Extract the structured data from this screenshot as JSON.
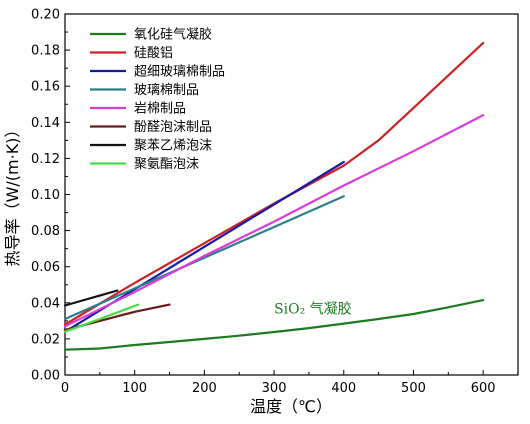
{
  "chart_data": {
    "type": "line",
    "xlabel": "温度（℃）",
    "ylabel": "热导率（W/(m·K)）",
    "xlim": [
      0,
      650
    ],
    "ylim": [
      0,
      0.2
    ],
    "xticks": [
      0,
      100,
      200,
      300,
      400,
      500,
      600
    ],
    "yticks": [
      0.0,
      0.02,
      0.04,
      0.06,
      0.08,
      0.1,
      0.12,
      0.14,
      0.16,
      0.18,
      0.2
    ],
    "grid": false,
    "legend_position": "top-left",
    "annotation": {
      "text": "SiO₂ 气凝胶",
      "x": 300,
      "y": 0.034,
      "color": "#1f7a1f"
    },
    "series": [
      {
        "name": "氧化硅气凝胶",
        "color": "#1f7a1f",
        "x": [
          0,
          50,
          100,
          150,
          200,
          250,
          300,
          350,
          400,
          450,
          500,
          550,
          600
        ],
        "y": [
          0.014,
          0.0147,
          0.0166,
          0.0183,
          0.02,
          0.0218,
          0.0238,
          0.026,
          0.0285,
          0.031,
          0.0338,
          0.0375,
          0.0415
        ]
      },
      {
        "name": "硅酸铝",
        "color": "#cc2222",
        "x": [
          0,
          100,
          200,
          300,
          400,
          450,
          500,
          550,
          600
        ],
        "y": [
          0.028,
          0.051,
          0.073,
          0.095,
          0.116,
          0.13,
          0.148,
          0.166,
          0.184
        ]
      },
      {
        "name": "超细玻璃棉制品",
        "color": "#1a1aa8",
        "x": [
          0,
          100,
          200,
          300,
          400
        ],
        "y": [
          0.024,
          0.0475,
          0.071,
          0.0945,
          0.118
        ]
      },
      {
        "name": "玻璃棉制品",
        "color": "#2a7f8a",
        "x": [
          0,
          100,
          200,
          300,
          400
        ],
        "y": [
          0.031,
          0.048,
          0.065,
          0.082,
          0.099
        ]
      },
      {
        "name": "岩棉制品",
        "color": "#d63fd6",
        "x": [
          0,
          100,
          200,
          300,
          400,
          500,
          600
        ],
        "y": [
          0.027,
          0.046,
          0.066,
          0.085,
          0.105,
          0.124,
          0.144
        ]
      },
      {
        "name": "酚醛泡沫制品",
        "color": "#6b1a1a",
        "x": [
          0,
          50,
          100,
          150
        ],
        "y": [
          0.025,
          0.03,
          0.035,
          0.039
        ]
      },
      {
        "name": "聚苯乙烯泡沫",
        "color": "#111111",
        "x": [
          0,
          25,
          50,
          75
        ],
        "y": [
          0.0385,
          0.0413,
          0.044,
          0.0468
        ]
      },
      {
        "name": "聚氨酯泡沫",
        "color": "#44dd44",
        "x": [
          0,
          50,
          105
        ],
        "y": [
          0.024,
          0.031,
          0.039
        ]
      }
    ]
  }
}
